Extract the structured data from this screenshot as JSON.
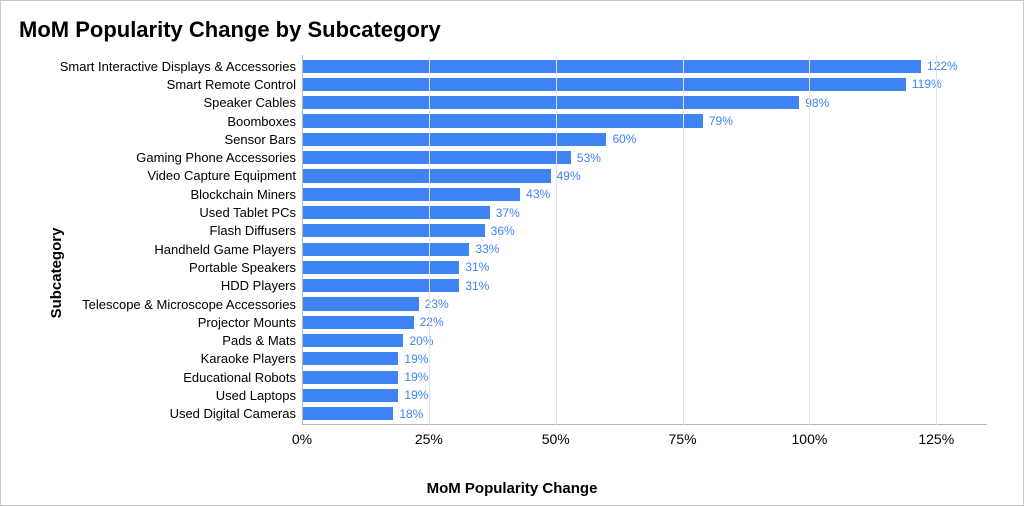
{
  "chart": {
    "type": "bar-horizontal",
    "title": "MoM Popularity Change by Subcategory",
    "title_fontsize": 22,
    "title_fontweight": 700,
    "ylabel": "Subcategory",
    "xlabel": "MoM Popularity Change",
    "axis_label_fontsize": 15,
    "axis_label_fontweight": 700,
    "xlim": [
      0,
      135
    ],
    "xticks": [
      0,
      25,
      50,
      75,
      100,
      125
    ],
    "xtick_labels": [
      "0%",
      "25%",
      "50%",
      "75%",
      "100%",
      "125%"
    ],
    "tick_fontsize": 14,
    "bar_color": "#3f84f3",
    "bar_width_ratio": 0.72,
    "value_label_color": "#3f84f3",
    "value_label_fontsize": 12,
    "category_label_fontsize": 13,
    "grid_color": "#e3e3e3",
    "axis_line_color": "#b7b7b7",
    "background_color": "#ffffff",
    "border_color": "#c9c9c9",
    "categories": [
      "Smart Interactive Displays & Accessories",
      "Smart Remote Control",
      "Speaker Cables",
      "Boomboxes",
      "Sensor Bars",
      "Gaming Phone Accessories",
      "Video Capture Equipment",
      "Blockchain Miners",
      "Used Tablet PCs",
      "Flash Diffusers",
      "Handheld Game Players",
      "Portable Speakers",
      "HDD Players",
      "Telescope & Microscope Accessories",
      "Projector Mounts",
      "Pads & Mats",
      "Karaoke Players",
      "Educational Robots",
      "Used Laptops",
      "Used Digital Cameras"
    ],
    "values": [
      122,
      119,
      98,
      79,
      60,
      53,
      49,
      43,
      37,
      36,
      33,
      31,
      31,
      23,
      22,
      20,
      19,
      19,
      19,
      18
    ],
    "value_labels": [
      "122%",
      "119%",
      "98%",
      "79%",
      "60%",
      "53%",
      "49%",
      "43%",
      "37%",
      "36%",
      "33%",
      "31%",
      "31%",
      "23%",
      "22%",
      "20%",
      "19%",
      "19%",
      "19%",
      "18%"
    ]
  }
}
